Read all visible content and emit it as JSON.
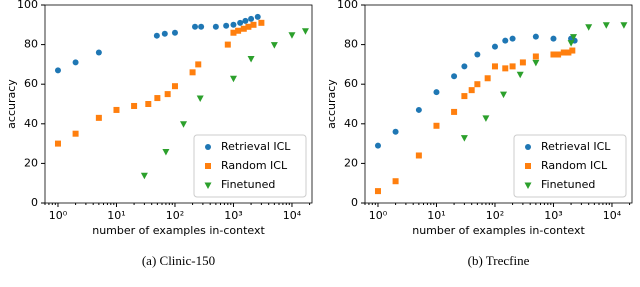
{
  "chart_data": [
    {
      "type": "scatter",
      "caption": "(a) Clinic-150",
      "xlabel": "number of examples in-context",
      "ylabel": "accuracy",
      "xlog": true,
      "xlim": [
        0.6,
        22000
      ],
      "ylim": [
        0,
        100
      ],
      "xticks": [
        {
          "value": 1,
          "label": "10⁰"
        },
        {
          "value": 10,
          "label": "10¹"
        },
        {
          "value": 100,
          "label": "10²"
        },
        {
          "value": 1000,
          "label": "10³"
        },
        {
          "value": 10000,
          "label": "10⁴"
        }
      ],
      "yticks": [
        0,
        20,
        40,
        60,
        80,
        100
      ],
      "grid": false,
      "legend": "lower right",
      "series": [
        {
          "name": "Retrieval ICL",
          "color": "#1f77b4",
          "marker": "o",
          "x": [
            1,
            2,
            5,
            49,
            67,
            100,
            220,
            280,
            500,
            750,
            1000,
            1300,
            1600,
            2000,
            2600
          ],
          "values": [
            67,
            71,
            76,
            84.5,
            85.5,
            86,
            89,
            89,
            89,
            89.5,
            90,
            91,
            92,
            93,
            94
          ]
        },
        {
          "name": "Random ICL",
          "color": "#ff7f0e",
          "marker": "s",
          "x": [
            1,
            2,
            5,
            10,
            20,
            35,
            50,
            75,
            100,
            200,
            250,
            800,
            1000,
            1200,
            1500,
            1800,
            2200,
            3000
          ],
          "values": [
            30,
            35,
            43,
            47,
            49,
            50,
            53,
            55,
            59,
            66,
            70,
            80,
            86,
            87,
            88,
            89,
            90,
            91
          ]
        },
        {
          "name": "Finetuned",
          "color": "#2ca02c",
          "marker": "v",
          "x": [
            30,
            70,
            140,
            270,
            1000,
            2000,
            5000,
            10000,
            17000
          ],
          "values": [
            14,
            26,
            40,
            53,
            63,
            73,
            80,
            85,
            87
          ]
        }
      ]
    },
    {
      "type": "scatter",
      "caption": "(b) Trecfine",
      "xlabel": "number of examples in-context",
      "ylabel": "accuracy",
      "xlog": true,
      "xlim": [
        0.6,
        22000
      ],
      "ylim": [
        0,
        100
      ],
      "xticks": [
        {
          "value": 1,
          "label": "10⁰"
        },
        {
          "value": 10,
          "label": "10¹"
        },
        {
          "value": 100,
          "label": "10²"
        },
        {
          "value": 1000,
          "label": "10³"
        },
        {
          "value": 10000,
          "label": "10⁴"
        }
      ],
      "yticks": [
        0,
        20,
        40,
        60,
        80,
        100
      ],
      "grid": false,
      "legend": "lower right",
      "series": [
        {
          "name": "Retrieval ICL",
          "color": "#1f77b4",
          "marker": "o",
          "x": [
            1,
            2,
            5,
            10,
            20,
            30,
            50,
            100,
            150,
            200,
            500,
            1000,
            2000,
            2300
          ],
          "values": [
            29,
            36,
            47,
            56,
            64,
            69,
            75,
            79,
            82,
            83,
            84,
            83,
            83,
            82
          ]
        },
        {
          "name": "Random ICL",
          "color": "#ff7f0e",
          "marker": "s",
          "x": [
            1,
            2,
            5,
            10,
            20,
            30,
            40,
            50,
            75,
            100,
            150,
            200,
            300,
            500,
            1000,
            1200,
            1500,
            1800,
            2100
          ],
          "values": [
            6,
            11,
            24,
            39,
            46,
            54,
            57,
            60,
            63,
            69,
            68,
            69,
            71,
            74,
            75,
            75,
            76,
            76,
            77
          ]
        },
        {
          "name": "Finetuned",
          "color": "#2ca02c",
          "marker": "v",
          "x": [
            30,
            70,
            140,
            270,
            500,
            2000,
            2200,
            4000,
            8000,
            16000
          ],
          "values": [
            33,
            43,
            55,
            65,
            71,
            81,
            84,
            89,
            90,
            90
          ]
        }
      ]
    }
  ]
}
